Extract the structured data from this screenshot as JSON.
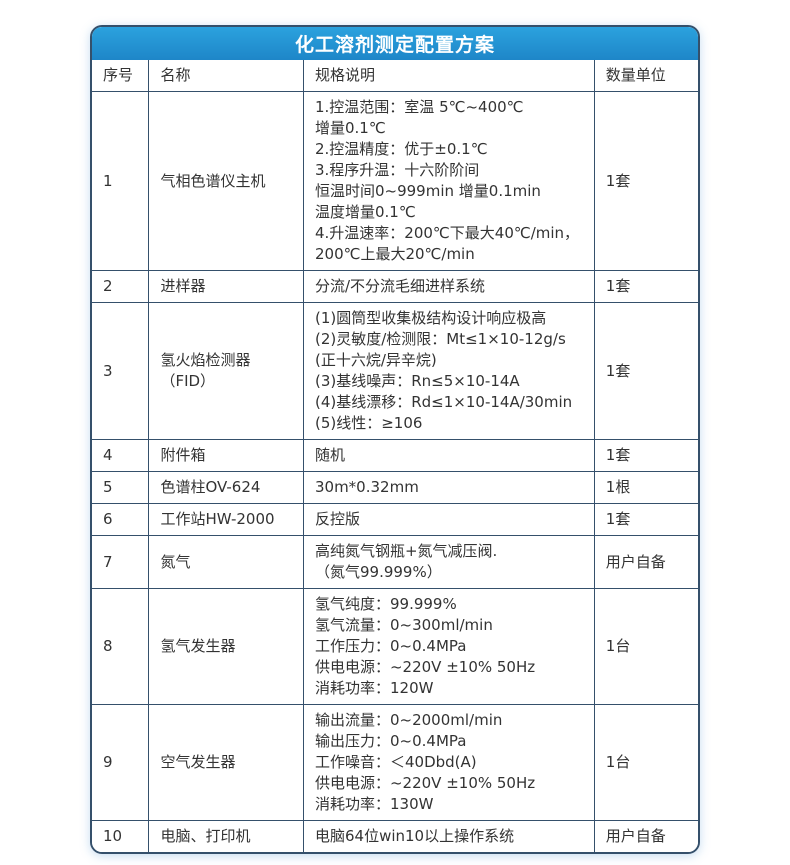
{
  "title": "化工溶剂测定配置方案",
  "colors": {
    "title_bar_blue_top": "#2ba2de",
    "title_bar_blue_bottom": "#1e86c8",
    "grid_line": "#35506b",
    "title_text": "#ffffff",
    "body_text": "#333333"
  },
  "table": {
    "headers": [
      "序号",
      "名称",
      "规格说明",
      "数量单位"
    ],
    "rows": [
      {
        "index": "1",
        "name": "气相色谱仪主机",
        "spec": [
          "1.控温范围：室温 5℃~400℃",
          "增量0.1℃",
          "2.控温精度：优于±0.1℃",
          "3.程序升温：十六阶阶间",
          "恒温时间0~999min 增量0.1min",
          "温度增量0.1℃",
          "4.升温速率：200℃下最大40℃/min，",
          "200℃上最大20℃/min"
        ],
        "qty": "1套"
      },
      {
        "index": "2",
        "name": "进样器",
        "spec": [
          "分流/不分流毛细进样系统"
        ],
        "qty": "1套"
      },
      {
        "index": "3",
        "name": "氢火焰检测器（FID）",
        "spec": [
          "(1)圆筒型收集极结构设计响应极高",
          "(2)灵敏度/检测限：Mt≤1×10-12g/s",
          "(正十六烷/异辛烷)",
          "(3)基线噪声：Rn≤5×10-14A",
          "(4)基线漂移：Rd≤1×10-14A/30min",
          "(5)线性：≥106"
        ],
        "qty": "1套"
      },
      {
        "index": "4",
        "name": "附件箱",
        "spec": [
          "随机"
        ],
        "qty": "1套"
      },
      {
        "index": "5",
        "name": "色谱柱OV-624",
        "spec": [
          "30m*0.32mm"
        ],
        "qty": "1根"
      },
      {
        "index": "6",
        "name": "工作站HW-2000",
        "spec": [
          "反控版"
        ],
        "qty": "1套"
      },
      {
        "index": "7",
        "name": "氮气",
        "spec": [
          "高纯氮气钢瓶+氮气减压阀.",
          "（氮气99.999%）"
        ],
        "qty": "用户自备"
      },
      {
        "index": "8",
        "name": "氢气发生器",
        "spec": [
          "氢气纯度：99.999%",
          "氢气流量：0~300ml/min",
          "工作压力：0~0.4MPa",
          "供电电源：~220V ±10% 50Hz",
          "消耗功率：120W"
        ],
        "qty": "1台"
      },
      {
        "index": "9",
        "name": "空气发生器",
        "spec": [
          "输出流量：0~2000ml/min",
          "输出压力：0~0.4MPa",
          "工作噪音：＜40Dbd(A)",
          "供电电源：~220V ±10% 50Hz",
          "消耗功率：130W"
        ],
        "qty": "1台"
      },
      {
        "index": "10",
        "name": "电脑、打印机",
        "spec": [
          "电脑64位win10以上操作系统"
        ],
        "qty": "用户自备"
      }
    ]
  }
}
